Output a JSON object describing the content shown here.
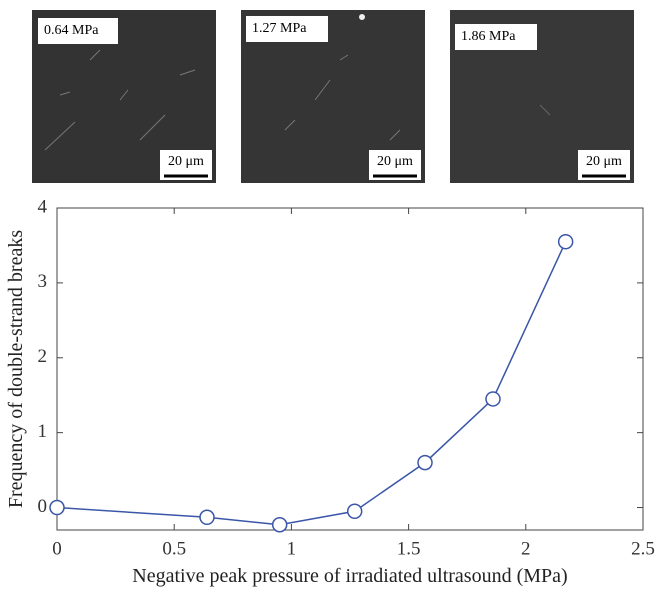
{
  "panels": [
    {
      "label": "0.64 MPa",
      "scale_bar": "20 μm"
    },
    {
      "label": "1.27 MPa",
      "scale_bar": "20 μm"
    },
    {
      "label": "1.86 MPa",
      "scale_bar": "20 μm"
    }
  ],
  "chart_data": {
    "type": "line",
    "xlabel": "Negative peak pressure of irradiated ultrasound (MPa)",
    "ylabel": "Frequency of double-strand breaks",
    "x": [
      0,
      0.64,
      0.95,
      1.27,
      1.57,
      1.86,
      2.17
    ],
    "y": [
      0,
      -0.13,
      -0.23,
      -0.05,
      0.6,
      1.45,
      3.55
    ],
    "color": "#3a56a8",
    "xlim": [
      0,
      2.5
    ],
    "xticks": [
      0,
      0.5,
      1,
      1.5,
      2,
      2.5
    ],
    "ylim": [
      -0.3,
      4
    ],
    "yticks": [
      0,
      1,
      2,
      3,
      4
    ]
  }
}
